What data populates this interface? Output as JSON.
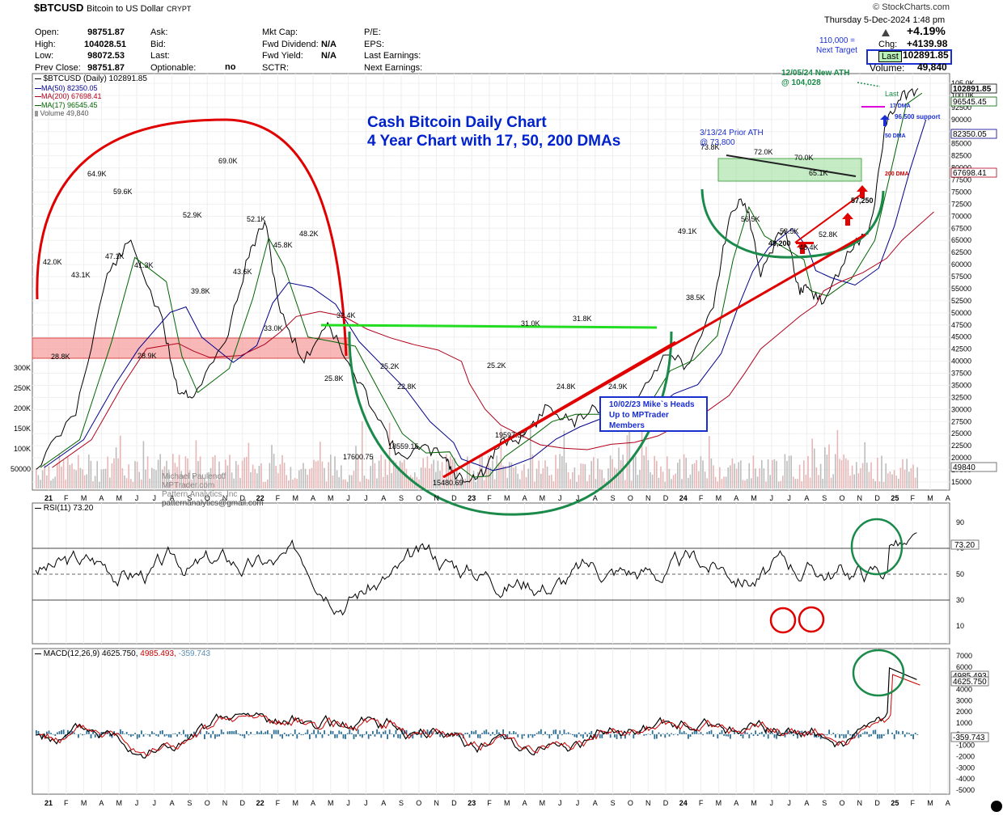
{
  "header": {
    "symbol": "$BTCUSD",
    "name": "Bitcoin to US Dollar",
    "exchange": "CRYPT",
    "brand": "© StockCharts.com",
    "date_line": "Thursday  5-Dec-2024  1:48 pm",
    "quote": {
      "open_label": "Open:",
      "open": "98751.87",
      "high_label": "High:",
      "high": "104028.51",
      "low_label": "Low:",
      "low": "98072.53",
      "prev_label": "Prev Close:",
      "prev": "98751.87",
      "ask_label": "Ask:",
      "bid_label": "Bid:",
      "last_label": "Last:",
      "optionable_label": "Optionable:",
      "optionable": "no",
      "mktcap_label": "Mkt Cap:",
      "fwddiv_label": "Fwd Dividend:",
      "fwddiv": "N/A",
      "fwdyield_label": "Fwd Yield:",
      "fwdyield": "N/A",
      "sctr_label": "SCTR:",
      "pe_label": "P/E:",
      "eps_label": "EPS:",
      "lastearn_label": "Last Earnings:",
      "nextearn_label": "Next Earnings:",
      "pct": "+4.19%",
      "chg_label": "Chg:",
      "chg": "+4139.98",
      "last_box": "Last",
      "last": "102891.85",
      "volume_label": "Volume:",
      "volume": "49,840"
    },
    "target_note": "110,000 =",
    "target_note2": "Next Target"
  },
  "chart_data": [
    {
      "type": "line",
      "title": "Cash Bitcoin Daily Chart",
      "subtitle": "4 Year Chart with 17, 50, 200 DMAs",
      "legend": [
        {
          "label": "$BTCUSD (Daily) 102891.85",
          "color": "#000000"
        },
        {
          "label": "MA(50) 82350.05",
          "color": "#00008b"
        },
        {
          "label": "MA(200) 67698.41",
          "color": "#b0001a"
        },
        {
          "label": "MA(17) 96545.45",
          "color": "#006400"
        },
        {
          "label": "Volume 49,840",
          "color": "#666666"
        }
      ],
      "x_ticks": [
        "21",
        "F",
        "M",
        "A",
        "M",
        "J",
        "J",
        "A",
        "S",
        "O",
        "N",
        "D",
        "22",
        "F",
        "M",
        "A",
        "M",
        "J",
        "J",
        "A",
        "S",
        "O",
        "N",
        "D",
        "23",
        "F",
        "M",
        "A",
        "M",
        "J",
        "J",
        "A",
        "S",
        "O",
        "N",
        "D",
        "24",
        "F",
        "M",
        "A",
        "M",
        "J",
        "J",
        "A",
        "S",
        "O",
        "N",
        "D",
        "25",
        "F",
        "M",
        "A"
      ],
      "y_ticks": [
        "105.0K",
        "100.0K",
        "92500",
        "90000",
        "87500",
        "85000",
        "82500",
        "80000",
        "77500",
        "75000",
        "72500",
        "70000",
        "67500",
        "65000",
        "62500",
        "60000",
        "57500",
        "55000",
        "52500",
        "50000",
        "47500",
        "45000",
        "42500",
        "40000",
        "37500",
        "35000",
        "32500",
        "30000",
        "27500",
        "25000",
        "22500",
        "20000",
        "17500",
        "15000"
      ],
      "y_range": [
        15000,
        105000
      ],
      "volume_ticks": [
        "300K",
        "250K",
        "200K",
        "150K",
        "100K",
        "50000"
      ],
      "right_labels": {
        "last": "102891.85",
        "ma17": "96545.45",
        "ma50": "82350.05",
        "ma200": "67698.41",
        "volume": "49840"
      },
      "price_points": [
        [
          0,
          18000
        ],
        [
          5,
          29500
        ],
        [
          9,
          58000
        ],
        [
          12,
          64900
        ],
        [
          16,
          48000
        ],
        [
          18,
          34000
        ],
        [
          20,
          33000
        ],
        [
          24,
          44000
        ],
        [
          27,
          62000
        ],
        [
          29,
          69000
        ],
        [
          31,
          50000
        ],
        [
          34,
          40000
        ],
        [
          37,
          48200
        ],
        [
          40,
          38000
        ],
        [
          43,
          30000
        ],
        [
          46,
          20000
        ],
        [
          49,
          22000
        ],
        [
          52,
          20500
        ],
        [
          53,
          16500
        ],
        [
          55,
          15480
        ],
        [
          57,
          17000
        ],
        [
          59,
          23500
        ],
        [
          62,
          24000
        ],
        [
          65,
          31000
        ],
        [
          68,
          27000
        ],
        [
          71,
          31000
        ],
        [
          74,
          26000
        ],
        [
          77,
          34000
        ],
        [
          80,
          42000
        ],
        [
          83,
          38500
        ],
        [
          86,
          52000
        ],
        [
          88,
          70000
        ],
        [
          90,
          73800
        ],
        [
          92,
          58000
        ],
        [
          95,
          68000
        ],
        [
          97,
          54000
        ],
        [
          98,
          55000
        ],
        [
          100,
          52000
        ],
        [
          103,
          62000
        ],
        [
          106,
          68000
        ],
        [
          108,
          90000
        ],
        [
          110,
          99000
        ],
        [
          112,
          102891
        ]
      ],
      "annotations": [
        "64.9K",
        "59.6K",
        "52.9K",
        "69.0K",
        "52.1K",
        "45.8K",
        "48.2K",
        "42.0K",
        "43.1K",
        "47.1K",
        "41.3K",
        "39.8K",
        "43.6K",
        "33.0K",
        "32.4K",
        "28.8K",
        "28.9K",
        "25.8K",
        "25.2K",
        "22.8K",
        "18559.15",
        "17600.75",
        "15480.69",
        "25.2K",
        "19597.37",
        "31.0K",
        "31.8K",
        "24.8K",
        "24.9K",
        "49.1K",
        "38.5K",
        "73.8K",
        "72.0K",
        "70.0K",
        "65.1K",
        "56.5K",
        "53.5K",
        "49,200",
        "52.8K",
        "48.4K",
        "57,250"
      ],
      "notes": {
        "ath": "12/05/24 New ATH",
        "ath2": "@ 104,028",
        "prior": "3/13/24 Prior ATH",
        "prior2": "@ 73,800",
        "dma17": "17 DMA",
        "dma50": "50 DMA",
        "dma200": "200 DMA",
        "support": "96,500 support",
        "last": "Last",
        "mike1": "10/02/23 Mike`s Heads",
        "mike2": "Up to MPTrader",
        "mike3": "Members",
        "watermark1": "Michael Paulenoff",
        "watermark2": "MPTrader.com",
        "watermark3": "Pattern Analytics, Inc",
        "watermark4": "patternanalytics@gmail.com"
      },
      "colors": {
        "price": "#000000",
        "ma50": "#00008b",
        "ma200": "#b0001a",
        "ma17": "#006400",
        "annotation_red": "#e00000",
        "annotation_green": "#1a8a4a",
        "title_blue": "#0022cc"
      }
    },
    {
      "type": "line",
      "legend": "RSI(11) 73.20",
      "y_ticks": [
        "90",
        "70",
        "50",
        "30",
        "10"
      ],
      "last_label": "73.20",
      "y_range": [
        0,
        100
      ]
    },
    {
      "type": "line",
      "legend_parts": [
        {
          "text": "MACD(12,26,9) 4625.750,",
          "color": "#000000"
        },
        {
          "text": "4985.493,",
          "color": "#cc0000"
        },
        {
          "text": "-359.743",
          "color": "#5a8fb0"
        }
      ],
      "y_ticks": [
        "7000",
        "6000",
        "5000",
        "4000",
        "3000",
        "2000",
        "1000",
        "0",
        "-1000",
        "-2000",
        "-3000",
        "-4000",
        "-5000"
      ],
      "right_labels": [
        "4985.493",
        "4625.750",
        "-359.743"
      ],
      "y_range": [
        -5000,
        7000
      ]
    }
  ]
}
